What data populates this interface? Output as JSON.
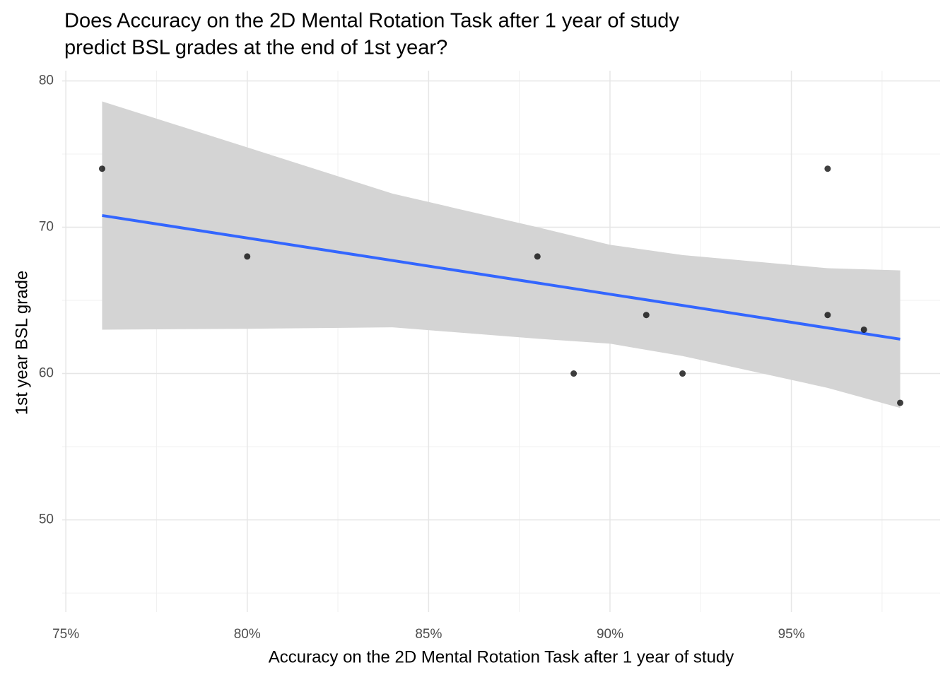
{
  "chart_data": {
    "type": "scatter",
    "title_lines": [
      "Does Accuracy on the 2D Mental Rotation Task after 1 year of study",
      "predict BSL grades at the end of 1st year?"
    ],
    "x_label": "Accuracy on the 2D Mental Rotation Task after 1 year of study",
    "y_label": "1st year BSL grade",
    "xlim": [
      74.9,
      99.1
    ],
    "ylim": [
      43.7,
      80.7
    ],
    "xticks": [
      {
        "value": 75,
        "label": "75%"
      },
      {
        "value": 80,
        "label": "80%"
      },
      {
        "value": 85,
        "label": "85%"
      },
      {
        "value": 90,
        "label": "90%"
      },
      {
        "value": 95,
        "label": "95%"
      }
    ],
    "x_minor_ticks": [
      77.5,
      82.5,
      87.5,
      92.5,
      97.5
    ],
    "yticks": [
      50,
      60,
      70,
      80
    ],
    "y_minor_ticks": [
      45,
      55,
      65,
      75
    ],
    "grid": true,
    "points": {
      "color": "#000000",
      "x": [
        76,
        80,
        88,
        89,
        91,
        92,
        96,
        96,
        97,
        98
      ],
      "y": [
        74,
        68,
        68,
        60,
        64,
        60,
        74,
        64,
        63,
        58
      ]
    },
    "fit": {
      "color": "#3366ff",
      "x": [
        76,
        98
      ],
      "values": [
        70.8,
        62.35
      ]
    },
    "band": {
      "color": "#d4d4d4",
      "x": [
        76,
        80,
        84,
        88,
        90,
        92,
        96,
        98
      ],
      "upper": [
        78.6,
        75.46,
        72.3,
        70.0,
        68.8,
        68.1,
        67.2,
        67.05
      ],
      "lower": [
        63.0,
        63.06,
        63.16,
        62.38,
        62.04,
        61.2,
        59.02,
        57.65
      ]
    }
  }
}
